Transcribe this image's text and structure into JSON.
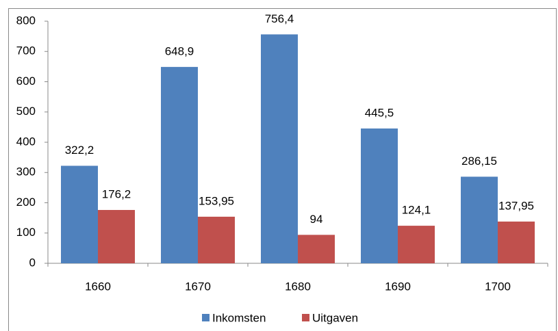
{
  "chart_data": {
    "type": "bar",
    "categories": [
      "1660",
      "1670",
      "1680",
      "1690",
      "1700"
    ],
    "series": [
      {
        "name": "Inkomsten",
        "color": "#4f81bd",
        "values": [
          322.2,
          648.9,
          756.4,
          445.5,
          286.15
        ],
        "value_labels": [
          "322,2",
          "648,9",
          "756,4",
          "445,5",
          "286,15"
        ]
      },
      {
        "name": "Uitgaven",
        "color": "#c0504d",
        "values": [
          176.2,
          153.95,
          94,
          124.1,
          137.95
        ],
        "value_labels": [
          "176,2",
          "153,95",
          "94",
          "124,1",
          "137,95"
        ]
      }
    ],
    "ylim": [
      0,
      800
    ],
    "yticks": [
      0,
      100,
      200,
      300,
      400,
      500,
      600,
      700,
      800
    ],
    "legend": "bottom"
  }
}
